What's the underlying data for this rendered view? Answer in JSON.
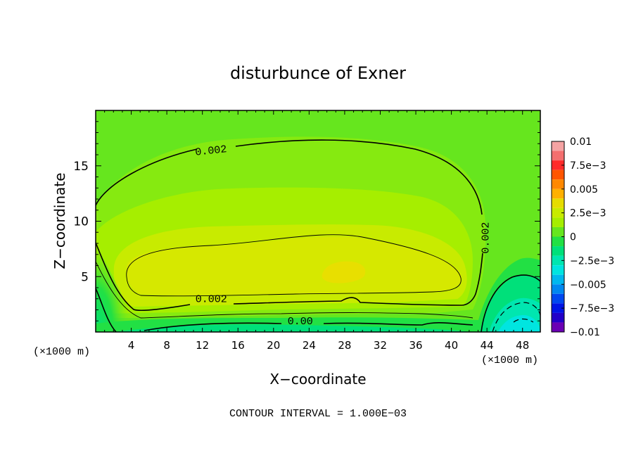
{
  "chart_data": {
    "type": "heatmap",
    "title": "disturbunce of Exner",
    "xlabel": "X−coordinate",
    "ylabel": "Z−coordinate",
    "x_unit_left": "(×1000 m)",
    "x_unit_right": "(×1000 m)",
    "footer": "CONTOUR INTERVAL = 1.000E−03",
    "xlim": [
      0,
      50
    ],
    "ylim": [
      0,
      20
    ],
    "xticks": [
      4,
      8,
      12,
      16,
      20,
      24,
      28,
      32,
      36,
      40,
      44,
      48
    ],
    "xtick_labels": [
      "4",
      "8",
      "12",
      "16",
      "20",
      "24",
      "28",
      "32",
      "36",
      "40",
      "44",
      "48"
    ],
    "yticks": [
      5,
      10,
      15
    ],
    "ytick_labels": [
      "5",
      "10",
      "15"
    ],
    "contour_interval": 0.001,
    "contour_labels": [
      {
        "text": "0.002",
        "x": 13.0,
        "z": 16.1
      },
      {
        "text": "0.002",
        "x": 44.2,
        "z": 8.5
      },
      {
        "text": "0.002",
        "x": 13.0,
        "z": 2.7
      },
      {
        "text": "0.00",
        "x": 23.0,
        "z": 0.7
      }
    ],
    "colorbar": {
      "min": -0.01,
      "max": 0.01,
      "levels": [
        {
          "from": 0.009,
          "to": 0.01,
          "color": "#f5a3a3"
        },
        {
          "from": 0.008,
          "to": 0.009,
          "color": "#f46f6f"
        },
        {
          "from": 0.007,
          "to": 0.008,
          "color": "#ff2a2a"
        },
        {
          "from": 0.006,
          "to": 0.007,
          "color": "#ff5500"
        },
        {
          "from": 0.005,
          "to": 0.006,
          "color": "#ff8800"
        },
        {
          "from": 0.004,
          "to": 0.005,
          "color": "#ffb000"
        },
        {
          "from": 0.003,
          "to": 0.004,
          "color": "#e6dc00"
        },
        {
          "from": 0.002,
          "to": 0.003,
          "color": "#c8eb00"
        },
        {
          "from": 0.001,
          "to": 0.002,
          "color": "#a6ee00"
        },
        {
          "from": 0.0,
          "to": 0.001,
          "color": "#66e61e"
        },
        {
          "from": -0.001,
          "to": 0.0,
          "color": "#22e044"
        },
        {
          "from": -0.002,
          "to": -0.001,
          "color": "#00e07a"
        },
        {
          "from": -0.003,
          "to": -0.002,
          "color": "#00e6b0"
        },
        {
          "from": -0.004,
          "to": -0.003,
          "color": "#00e5e0"
        },
        {
          "from": -0.005,
          "to": -0.004,
          "color": "#00b8ee"
        },
        {
          "from": -0.006,
          "to": -0.005,
          "color": "#0088f0"
        },
        {
          "from": -0.007,
          "to": -0.006,
          "color": "#0048f0"
        },
        {
          "from": -0.008,
          "to": -0.007,
          "color": "#0014e6"
        },
        {
          "from": -0.009,
          "to": -0.008,
          "color": "#2200c8"
        },
        {
          "from": -0.01,
          "to": -0.009,
          "color": "#6a00b4"
        }
      ],
      "tick_values": [
        0.01,
        0.0075,
        0.005,
        0.0025,
        0,
        -0.0025,
        -0.005,
        -0.0075,
        -0.01
      ],
      "tick_labels": [
        "0.01",
        "7.5e−3",
        "0.005",
        "2.5e−3",
        "0",
        "−2.5e−3",
        "−0.005",
        "−7.5e−3",
        "−0.01"
      ]
    }
  }
}
